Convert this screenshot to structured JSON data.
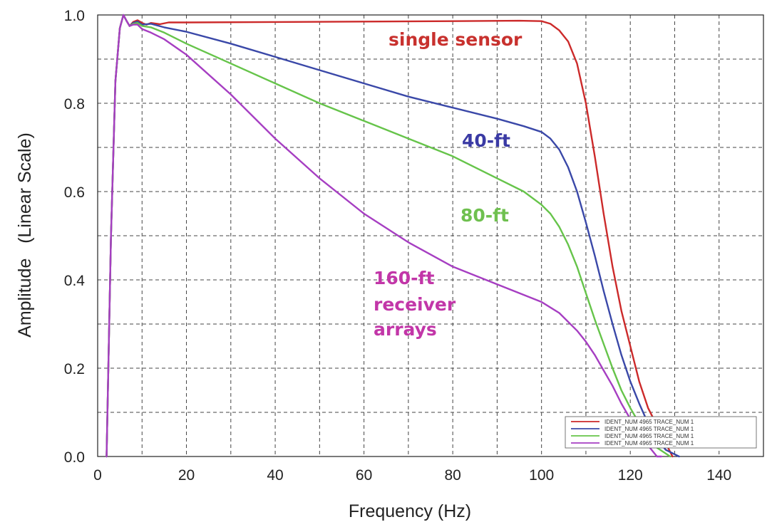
{
  "chart_data": {
    "type": "line",
    "xlabel": "Frequency (Hz)",
    "ylabel": "Amplitude   (Linear Scale)",
    "xlim": [
      0,
      150
    ],
    "ylim": [
      0,
      1.0
    ],
    "x_ticks": [
      0,
      20,
      40,
      60,
      80,
      100,
      120,
      140
    ],
    "y_ticks": [
      0.0,
      0.2,
      0.4,
      0.6,
      0.8,
      1.0
    ],
    "x_tick_labels": [
      "0",
      "20",
      "40",
      "60",
      "80",
      "100",
      "120",
      "140"
    ],
    "y_tick_labels": [
      "0.0",
      "0.2",
      "0.4",
      "0.6",
      "0.8",
      "1.0"
    ],
    "grid": true,
    "legend_position": "bottom-right",
    "series": [
      {
        "name": "single sensor",
        "color": "#cc2a2a",
        "legend_text": "IDENT_NUM 4965 TRACE_NUM 1",
        "points": [
          [
            2,
            0
          ],
          [
            3,
            0.5
          ],
          [
            4,
            0.85
          ],
          [
            5,
            0.97
          ],
          [
            5.8,
            1.0
          ],
          [
            6.6,
            0.985
          ],
          [
            7.2,
            0.975
          ],
          [
            8,
            0.984
          ],
          [
            9,
            0.988
          ],
          [
            10,
            0.982
          ],
          [
            11,
            0.978
          ],
          [
            12,
            0.982
          ],
          [
            14,
            0.979
          ],
          [
            16,
            0.983
          ],
          [
            20,
            0.983
          ],
          [
            40,
            0.984
          ],
          [
            60,
            0.985
          ],
          [
            80,
            0.986
          ],
          [
            95,
            0.987
          ],
          [
            100,
            0.986
          ],
          [
            102,
            0.98
          ],
          [
            104,
            0.965
          ],
          [
            106,
            0.94
          ],
          [
            108,
            0.89
          ],
          [
            110,
            0.8
          ],
          [
            112,
            0.68
          ],
          [
            114,
            0.55
          ],
          [
            116,
            0.43
          ],
          [
            118,
            0.33
          ],
          [
            120,
            0.25
          ],
          [
            122,
            0.17
          ],
          [
            124,
            0.11
          ],
          [
            126,
            0.07
          ],
          [
            128,
            0.03
          ],
          [
            129.5,
            0
          ]
        ],
        "label_at": [
          65,
          0.935
        ]
      },
      {
        "name": "40-ft",
        "color": "#3a48a8",
        "legend_text": "IDENT_NUM 4965 TRACE_NUM 1",
        "points": [
          [
            2,
            0
          ],
          [
            3,
            0.5
          ],
          [
            4,
            0.85
          ],
          [
            5,
            0.97
          ],
          [
            5.8,
            1.0
          ],
          [
            6.6,
            0.985
          ],
          [
            7.2,
            0.975
          ],
          [
            8,
            0.982
          ],
          [
            9,
            0.985
          ],
          [
            10,
            0.978
          ],
          [
            12,
            0.98
          ],
          [
            15,
            0.972
          ],
          [
            20,
            0.962
          ],
          [
            30,
            0.935
          ],
          [
            40,
            0.905
          ],
          [
            50,
            0.875
          ],
          [
            60,
            0.845
          ],
          [
            70,
            0.815
          ],
          [
            80,
            0.79
          ],
          [
            90,
            0.765
          ],
          [
            96,
            0.748
          ],
          [
            100,
            0.735
          ],
          [
            102,
            0.72
          ],
          [
            104,
            0.695
          ],
          [
            106,
            0.655
          ],
          [
            108,
            0.6
          ],
          [
            110,
            0.53
          ],
          [
            112,
            0.455
          ],
          [
            114,
            0.375
          ],
          [
            116,
            0.3
          ],
          [
            118,
            0.23
          ],
          [
            120,
            0.17
          ],
          [
            122,
            0.12
          ],
          [
            124,
            0.075
          ],
          [
            126,
            0.04
          ],
          [
            128,
            0.015
          ],
          [
            131,
            0
          ]
        ],
        "label_at": [
          82,
          0.72
        ]
      },
      {
        "name": "80-ft",
        "color": "#66c44a",
        "legend_text": "IDENT_NUM 4965 TRACE_NUM 1",
        "points": [
          [
            2,
            0
          ],
          [
            3,
            0.5
          ],
          [
            4,
            0.85
          ],
          [
            5,
            0.97
          ],
          [
            5.8,
            1.0
          ],
          [
            6.6,
            0.985
          ],
          [
            7.2,
            0.975
          ],
          [
            8,
            0.98
          ],
          [
            9,
            0.982
          ],
          [
            10,
            0.975
          ],
          [
            12,
            0.972
          ],
          [
            15,
            0.96
          ],
          [
            20,
            0.935
          ],
          [
            30,
            0.89
          ],
          [
            40,
            0.845
          ],
          [
            50,
            0.8
          ],
          [
            60,
            0.76
          ],
          [
            70,
            0.72
          ],
          [
            80,
            0.68
          ],
          [
            90,
            0.63
          ],
          [
            96,
            0.6
          ],
          [
            100,
            0.57
          ],
          [
            102,
            0.55
          ],
          [
            104,
            0.52
          ],
          [
            106,
            0.48
          ],
          [
            108,
            0.43
          ],
          [
            110,
            0.37
          ],
          [
            112,
            0.31
          ],
          [
            114,
            0.255
          ],
          [
            116,
            0.2
          ],
          [
            118,
            0.15
          ],
          [
            120,
            0.11
          ],
          [
            122,
            0.075
          ],
          [
            124,
            0.045
          ],
          [
            126,
            0.02
          ],
          [
            129,
            0
          ]
        ],
        "label_at": [
          80,
          0.525
        ]
      },
      {
        "name": "160-ft receiver arrays",
        "color": "#a63ec2",
        "legend_text": "IDENT_NUM 4965 TRACE_NUM 1",
        "points": [
          [
            2,
            0
          ],
          [
            3,
            0.5
          ],
          [
            4,
            0.85
          ],
          [
            5,
            0.97
          ],
          [
            5.8,
            1.0
          ],
          [
            6.6,
            0.985
          ],
          [
            7.2,
            0.975
          ],
          [
            8,
            0.978
          ],
          [
            9,
            0.978
          ],
          [
            10,
            0.968
          ],
          [
            12,
            0.96
          ],
          [
            15,
            0.945
          ],
          [
            20,
            0.91
          ],
          [
            30,
            0.82
          ],
          [
            40,
            0.72
          ],
          [
            50,
            0.63
          ],
          [
            60,
            0.55
          ],
          [
            70,
            0.485
          ],
          [
            80,
            0.43
          ],
          [
            90,
            0.39
          ],
          [
            100,
            0.35
          ],
          [
            104,
            0.325
          ],
          [
            108,
            0.285
          ],
          [
            110,
            0.26
          ],
          [
            112,
            0.23
          ],
          [
            114,
            0.195
          ],
          [
            116,
            0.16
          ],
          [
            118,
            0.12
          ],
          [
            120,
            0.085
          ],
          [
            122,
            0.055
          ],
          [
            124,
            0.025
          ],
          [
            126,
            0
          ],
          [
            127,
            0
          ]
        ],
        "label_at": [
          62,
          0.43
        ]
      }
    ],
    "annotation_lines": {
      "single_sensor": [
        "single sensor"
      ],
      "forty_ft": [
        "40-ft"
      ],
      "eighty_ft": [
        "80-ft"
      ],
      "one_sixty_ft": [
        "160-ft",
        "receiver",
        "arrays"
      ]
    },
    "annotation_colors": {
      "single_sensor": "#c8312e",
      "forty_ft": "#3a3aa4",
      "eighty_ft": "#6fc04f",
      "one_sixty_ft": "#c236a8"
    }
  }
}
